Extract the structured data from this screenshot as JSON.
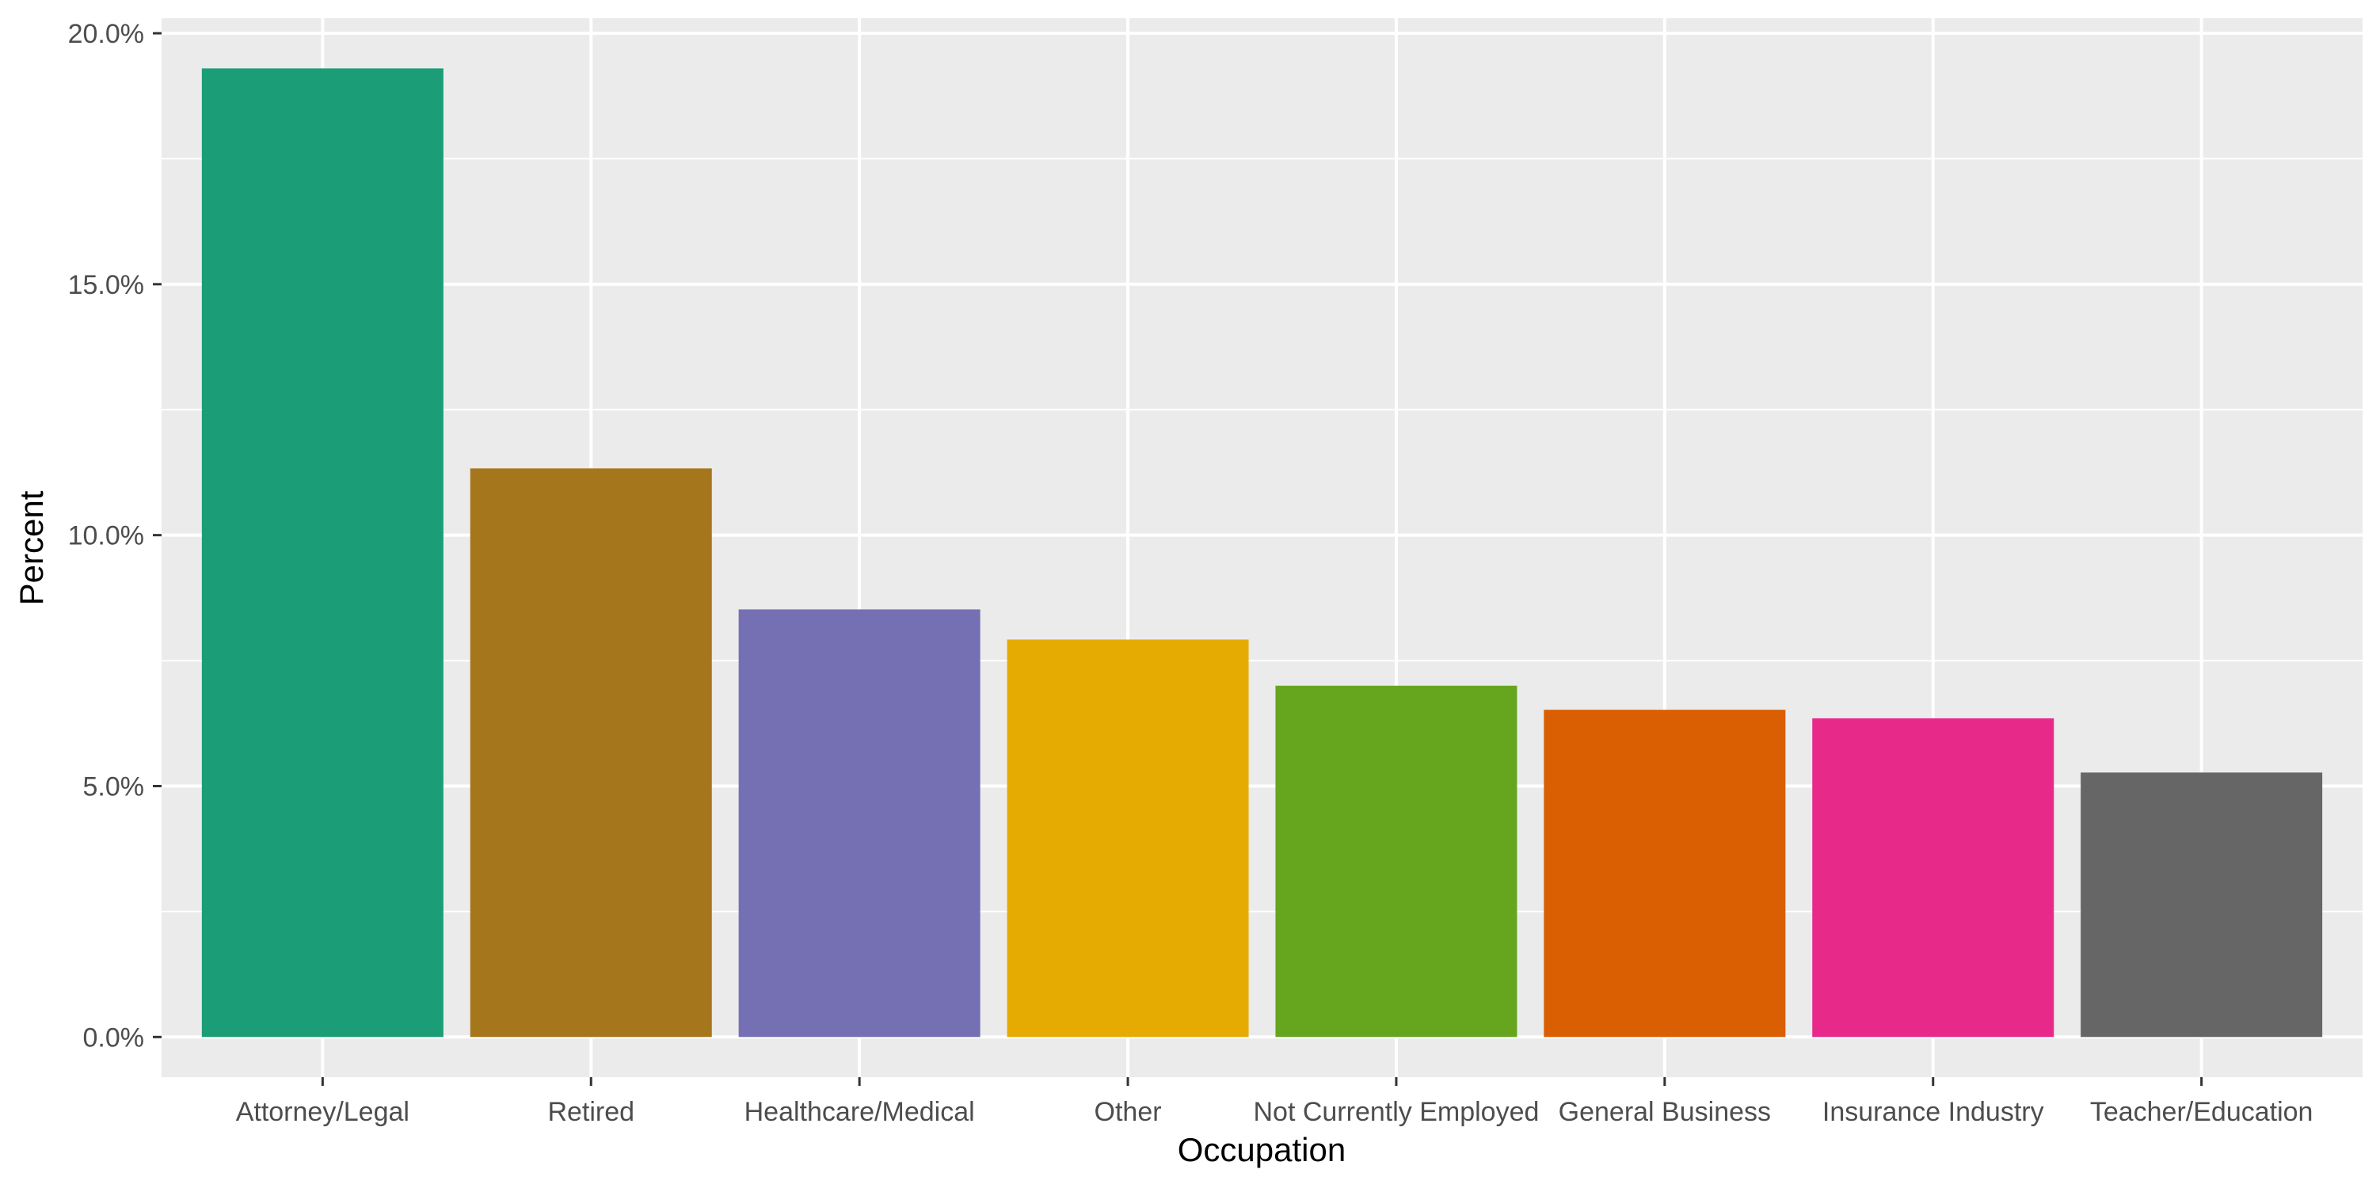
{
  "chart_data": {
    "type": "bar",
    "xlabel": "Occupation",
    "ylabel": "Percent",
    "ylim": [
      -0.8,
      20.3
    ],
    "yticks": [
      0,
      5,
      10,
      15,
      20
    ],
    "ytick_labels": [
      "0.0%",
      "5.0%",
      "10.0%",
      "15.0%",
      "20.0%"
    ],
    "categories": [
      "Attorney/Legal",
      "Retired",
      "Healthcare/Medical",
      "Other",
      "Not Currently Employed",
      "General Business",
      "Insurance Industry",
      "Teacher/Education"
    ],
    "values": [
      19.3,
      11.33,
      8.52,
      7.92,
      7.0,
      6.52,
      6.35,
      5.27
    ],
    "colors": [
      "#1b9e77",
      "#a6761d",
      "#7570b3",
      "#e6ab02",
      "#66a61e",
      "#d95f02",
      "#e7298a",
      "#666666"
    ],
    "grid": true,
    "legend": "none",
    "panel_background": "#ebebeb"
  }
}
